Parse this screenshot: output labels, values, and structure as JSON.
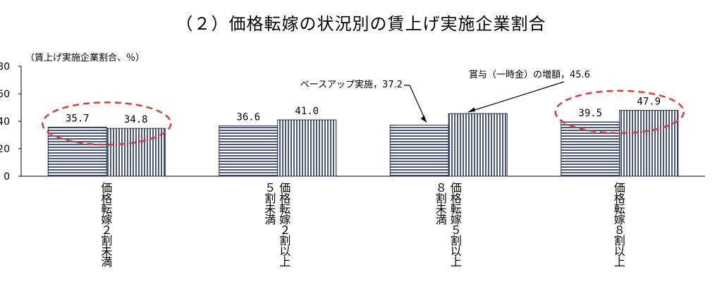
{
  "chart_data": {
    "type": "bar",
    "title": "（２）価格転嫁の状況別の賃上げ実施企業割合",
    "ylabel": "（賃上げ実施企業割合、％）",
    "ylim": [
      0,
      80
    ],
    "yticks": [
      0,
      20,
      40,
      60,
      80
    ],
    "categories": [
      "価格転嫁２割未満",
      "価格転嫁２割以上５割未満",
      "価格転嫁５割以上８割未満",
      "価格転嫁８割以上"
    ],
    "category_lines": [
      [
        "価格転嫁２割未満"
      ],
      [
        "価格転嫁２割以上",
        "５割未満"
      ],
      [
        "価格転嫁５割以上",
        "８割未満"
      ],
      [
        "価格転嫁８割以上"
      ]
    ],
    "series": [
      {
        "name": "ベースアップ実施",
        "values": [
          35.7,
          36.6,
          37.2,
          39.5
        ],
        "pattern": "horizontal-stripes"
      },
      {
        "name": "賞与（一時金）の増額",
        "values": [
          34.8,
          41.0,
          45.6,
          47.9
        ],
        "pattern": "vertical-stripes"
      }
    ],
    "value_labels": [
      [
        "35.7",
        "36.6",
        "",
        "39.5"
      ],
      [
        "34.8",
        "41.0",
        "",
        "47.9"
      ]
    ],
    "annotations": [
      {
        "text": "ベースアップ実施，37.2",
        "series": 0,
        "category": 2
      },
      {
        "text": "賞与（一時金）の増額，45.6",
        "series": 1,
        "category": 2
      }
    ],
    "highlights": [
      {
        "category": 0,
        "style": "red-dashed-ellipse"
      },
      {
        "category": 3,
        "style": "red-dashed-ellipse"
      }
    ],
    "colors": {
      "bar_stroke": "#1f2d5c",
      "highlight": "#e53935"
    },
    "grid": false
  }
}
